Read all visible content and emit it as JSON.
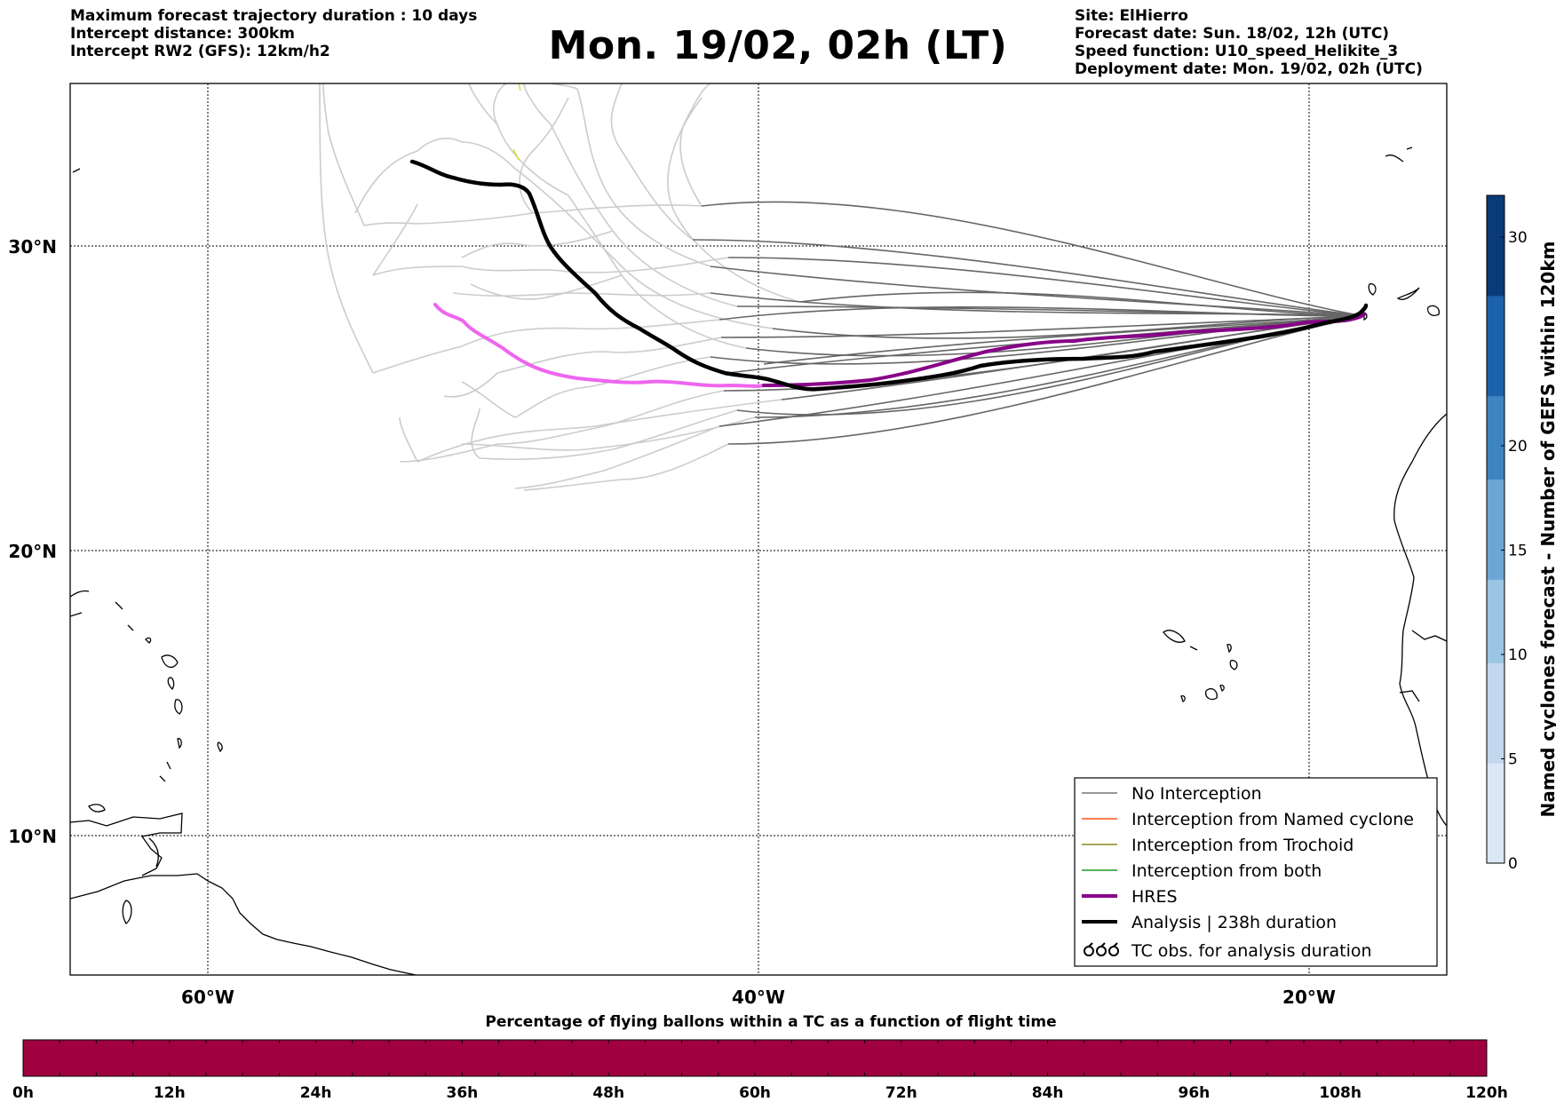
{
  "header": {
    "left": [
      "Maximum forecast trajectory duration : 10 days",
      "Intercept distance: 300km",
      "Intercept RW2 (GFS):  12km/h2"
    ],
    "title": "Mon. 19/02, 02h (LT)",
    "right": [
      "Site: ElHierro",
      "Forecast date: Sun. 18/02, 12h (UTC)",
      "Speed function: U10_speed_Helikite_3",
      "Deployment date: Mon. 19/02, 02h (UTC)"
    ]
  },
  "map": {
    "lat_labels": [
      "30°N",
      "20°N",
      "10°N"
    ],
    "lon_labels": [
      "60°W",
      "40°W",
      "20°W"
    ],
    "extent": {
      "lon_min": -65,
      "lon_max": -15,
      "lat_min": 5.4,
      "lat_max": 35.3
    },
    "colors": {
      "gefs_far": "#cccccc",
      "gefs_near": "#666666",
      "hres_west": "#ee66ee",
      "hres_east": "#880088",
      "analysis": "#000000",
      "coastline": "#000000"
    }
  },
  "legend": {
    "items": [
      {
        "label": "No Interception",
        "color": "#777777",
        "style": "thin-line"
      },
      {
        "label": "Interception from Named cyclone",
        "color": "#ff5511",
        "style": "thin-line"
      },
      {
        "label": "Interception from Trochoid",
        "color": "#888822",
        "style": "thin-line"
      },
      {
        "label": "Interception from both",
        "color": "#229922",
        "style": "thin-line"
      },
      {
        "label": "HRES",
        "color": "#880088",
        "style": "thick-line"
      },
      {
        "label": "Analysis | 238h duration",
        "color": "#000000",
        "style": "thick-line"
      },
      {
        "label": "TC obs. for analysis duration",
        "color": "#000000",
        "style": "tc-symbols"
      }
    ]
  },
  "colorbar_right": {
    "label": "Named cyclones forecast - Number of GEFS within 120km",
    "ticks": [
      "0",
      "5",
      "10",
      "15",
      "20",
      "30"
    ],
    "range": [
      0,
      32
    ],
    "colors": [
      "#dbe7f5",
      "#c3d8ee",
      "#9cc4e3",
      "#6ba6d4",
      "#3d84c0",
      "#1c62aa",
      "#0a3a78"
    ]
  },
  "colorbar_bottom": {
    "label": "Percentage of flying ballons within a TC as a function of flight time",
    "ticks": [
      "0h",
      "12h",
      "24h",
      "36h",
      "48h",
      "60h",
      "72h",
      "84h",
      "96h",
      "108h",
      "120h"
    ],
    "color": "#a00040"
  }
}
